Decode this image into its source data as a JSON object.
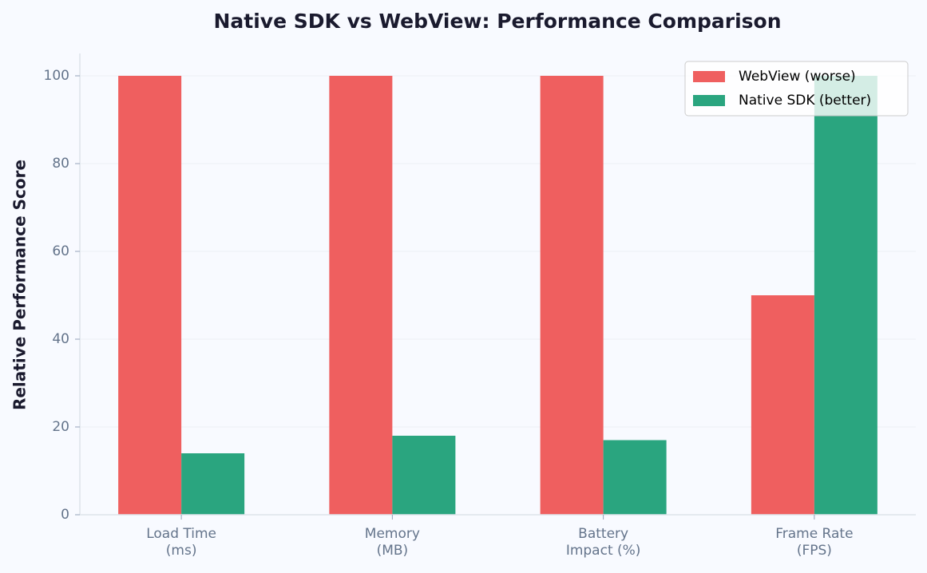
{
  "chart_data": {
    "type": "bar",
    "title": "Native SDK vs WebView: Performance Comparison",
    "y_label": "Relative Performance Score",
    "categories": [
      "Load Time\n(ms)",
      "Memory\n(MB)",
      "Battery\nImpact (%)",
      "Frame Rate\n(FPS)"
    ],
    "series": [
      {
        "name": "WebView (worse)",
        "color": "#ef5f5f",
        "values": [
          100,
          100,
          100,
          50
        ]
      },
      {
        "name": "Native SDK (better)",
        "color": "#2aa57f",
        "values": [
          14,
          18,
          17,
          100
        ]
      }
    ],
    "ylim": [
      0,
      105
    ],
    "yticks": [
      0,
      20,
      40,
      60,
      80,
      100
    ],
    "grid": true,
    "legend": "upper right"
  }
}
